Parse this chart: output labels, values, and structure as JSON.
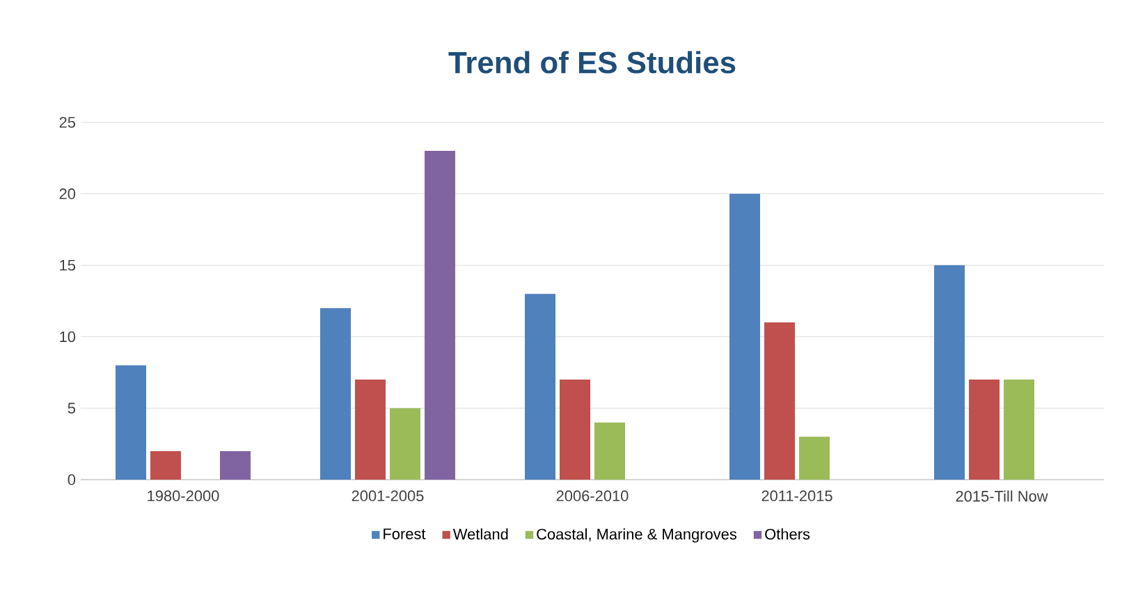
{
  "chart_data": {
    "type": "bar",
    "title": "Trend of ES Studies",
    "categories": [
      "1980-2000",
      "2001-2005",
      "2006-2010",
      "2011-2015",
      "2015-Till Now"
    ],
    "series": [
      {
        "name": "Forest",
        "color": "#4f81bd",
        "values": [
          8,
          12,
          13,
          20,
          15
        ]
      },
      {
        "name": "Wetland",
        "color": "#c0504d",
        "values": [
          2,
          7,
          7,
          11,
          7
        ]
      },
      {
        "name": "Coastal, Marine & Mangroves",
        "color": "#9bbb59",
        "values": [
          null,
          5,
          4,
          3,
          7
        ]
      },
      {
        "name": "Others",
        "color": "#8064a2",
        "values": [
          2,
          23,
          null,
          null,
          null
        ]
      }
    ],
    "ylim": [
      0,
      25
    ],
    "yticks": [
      0,
      5,
      10,
      15,
      20,
      25
    ],
    "grid": "y",
    "legend": "bottom"
  }
}
